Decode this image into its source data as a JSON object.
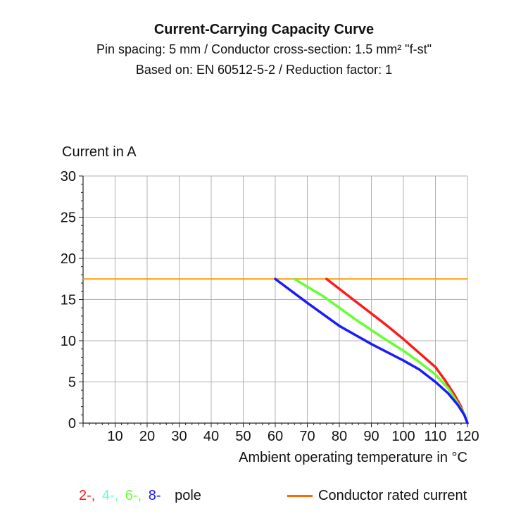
{
  "chart_data": {
    "type": "line",
    "title": "Current-Carrying Capacity Curve",
    "subtitle_lines": [
      "Pin spacing: 5 mm / Conductor cross-section: 1.5 mm² \"f-st\"",
      "Based on: EN 60512-5-2 / Reduction factor: 1"
    ],
    "xlabel": "Ambient operating temperature in °C",
    "ylabel": "Current in A",
    "xlim": [
      0,
      120
    ],
    "ylim": [
      0,
      30
    ],
    "xticks": [
      10,
      20,
      30,
      40,
      50,
      60,
      70,
      80,
      90,
      100,
      110,
      120
    ],
    "yticks": [
      0,
      5,
      10,
      15,
      20,
      25,
      30
    ],
    "grid": true,
    "rated_current": {
      "name": "Conductor rated current",
      "value": 17.5,
      "color": "#ff9900"
    },
    "series": [
      {
        "color": "#ff1a1a",
        "x": [
          76,
          85,
          95,
          100,
          105,
          110,
          113,
          116,
          118,
          119,
          120
        ],
        "y": [
          17.5,
          14.8,
          11.8,
          10.2,
          8.5,
          6.8,
          5.2,
          3.4,
          2.0,
          1.0,
          0
        ]
      },
      {
        "color": "#66ff33",
        "x": [
          66,
          75,
          85,
          95,
          100,
          105,
          110,
          114,
          117,
          119,
          120
        ],
        "y": [
          17.5,
          15.4,
          12.6,
          10.0,
          8.8,
          7.4,
          5.9,
          4.2,
          2.4,
          1.1,
          0
        ]
      },
      {
        "color": "#1a1aff",
        "x": [
          60,
          70,
          80,
          90,
          100,
          105,
          110,
          114,
          117,
          119,
          120
        ],
        "y": [
          17.5,
          14.6,
          11.8,
          9.6,
          7.6,
          6.5,
          5.0,
          3.6,
          2.2,
          1.0,
          0
        ]
      }
    ]
  },
  "legend": {
    "poles": [
      {
        "text": "2-,",
        "color": "#ff1a1a"
      },
      {
        "text": "4-,",
        "color": "#66ffcc"
      },
      {
        "text": "6-,",
        "color": "#66ff33"
      },
      {
        "text": "8-",
        "color": "#1a1aff"
      }
    ],
    "poles_suffix": "pole",
    "rated_label": "Conductor rated current",
    "rated_color": "#ff6600"
  }
}
